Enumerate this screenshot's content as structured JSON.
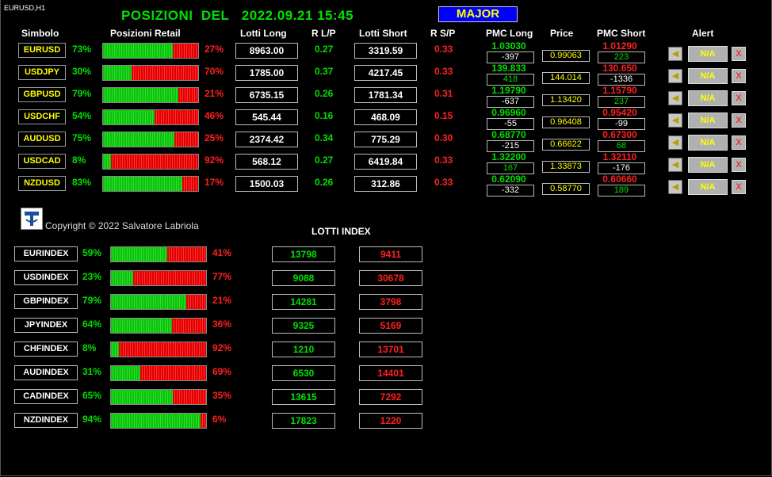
{
  "chart_label": "EURUSD,H1",
  "title": "POSIZIONI  DEL   2022.09.21 15:45",
  "group_button": "MAJOR",
  "headers": {
    "simbolo": "Simbolo",
    "posizioni": "Posizioni Retail",
    "lotti_long": "Lotti Long",
    "r_lp": "R L/P",
    "lotti_short": "Lotti Short",
    "r_sp": "R S/P",
    "pmc_long": "PMC Long",
    "price": "Price",
    "pmc_short": "PMC Short",
    "alert": "Alert"
  },
  "pairs": [
    {
      "symbol": "EURUSD",
      "long_pct": "73%",
      "short_pct": "27%",
      "long_frac": 0.73,
      "lotti_long": "8963.00",
      "r_lp": "0.27",
      "lotti_short": "3319.59",
      "r_sp": "0.33",
      "pmc_long": "1.03030",
      "pmc_long_pips": "-397",
      "price": "0.99063",
      "pmc_short": "1.01290",
      "pmc_short_pips": "223",
      "alert_label": "N/A",
      "alert_close": "X"
    },
    {
      "symbol": "USDJPY",
      "long_pct": "30%",
      "short_pct": "70%",
      "long_frac": 0.3,
      "lotti_long": "1785.00",
      "r_lp": "0.37",
      "lotti_short": "4217.45",
      "r_sp": "0.33",
      "pmc_long": "139.833",
      "pmc_long_pips": "418",
      "price": "144.014",
      "pmc_short": "130.650",
      "pmc_short_pips": "-1336",
      "alert_label": "N/A",
      "alert_close": "X"
    },
    {
      "symbol": "GBPUSD",
      "long_pct": "79%",
      "short_pct": "21%",
      "long_frac": 0.79,
      "lotti_long": "6735.15",
      "r_lp": "0.26",
      "lotti_short": "1781.34",
      "r_sp": "0.31",
      "pmc_long": "1.19790",
      "pmc_long_pips": "-637",
      "price": "1.13420",
      "pmc_short": "1.15790",
      "pmc_short_pips": "237",
      "alert_label": "N/A",
      "alert_close": "X"
    },
    {
      "symbol": "USDCHF",
      "long_pct": "54%",
      "short_pct": "46%",
      "long_frac": 0.54,
      "lotti_long": "545.44",
      "r_lp": "0.16",
      "lotti_short": "468.09",
      "r_sp": "0.15",
      "pmc_long": "0.96960",
      "pmc_long_pips": "-55",
      "price": "0.96408",
      "pmc_short": "0.95420",
      "pmc_short_pips": "-99",
      "alert_label": "N/A",
      "alert_close": "X"
    },
    {
      "symbol": "AUDUSD",
      "long_pct": "75%",
      "short_pct": "25%",
      "long_frac": 0.75,
      "lotti_long": "2374.42",
      "r_lp": "0.34",
      "lotti_short": "775.29",
      "r_sp": "0.30",
      "pmc_long": "0.68770",
      "pmc_long_pips": "-215",
      "price": "0.66622",
      "pmc_short": "0.67300",
      "pmc_short_pips": "68",
      "alert_label": "N/A",
      "alert_close": "X"
    },
    {
      "symbol": "USDCAD",
      "long_pct": "8%",
      "short_pct": "92%",
      "long_frac": 0.08,
      "lotti_long": "568.12",
      "r_lp": "0.27",
      "lotti_short": "6419.84",
      "r_sp": "0.33",
      "pmc_long": "1.32200",
      "pmc_long_pips": "167",
      "price": "1.33873",
      "pmc_short": "1.32110",
      "pmc_short_pips": "-176",
      "alert_label": "N/A",
      "alert_close": "X"
    },
    {
      "symbol": "NZDUSD",
      "long_pct": "83%",
      "short_pct": "17%",
      "long_frac": 0.83,
      "lotti_long": "1500.03",
      "r_lp": "0.26",
      "lotti_short": "312.86",
      "r_sp": "0.33",
      "pmc_long": "0.62090",
      "pmc_long_pips": "-332",
      "price": "0.58770",
      "pmc_short": "0.60660",
      "pmc_short_pips": "189",
      "alert_label": "N/A",
      "alert_close": "X"
    }
  ],
  "copyright": "Copyright © 2022 Salvatore Labriola",
  "index_title": "LOTTI INDEX",
  "indexes": [
    {
      "symbol": "EURINDEX",
      "long_pct": "59%",
      "short_pct": "41%",
      "long_frac": 0.59,
      "long": "13798",
      "short": "9411"
    },
    {
      "symbol": "USDINDEX",
      "long_pct": "23%",
      "short_pct": "77%",
      "long_frac": 0.23,
      "long": "9088",
      "short": "30678"
    },
    {
      "symbol": "GBPINDEX",
      "long_pct": "79%",
      "short_pct": "21%",
      "long_frac": 0.79,
      "long": "14281",
      "short": "3798"
    },
    {
      "symbol": "JPYINDEX",
      "long_pct": "64%",
      "short_pct": "36%",
      "long_frac": 0.64,
      "long": "9325",
      "short": "5169"
    },
    {
      "symbol": "CHFINDEX",
      "long_pct": "8%",
      "short_pct": "92%",
      "long_frac": 0.08,
      "long": "1210",
      "short": "13701"
    },
    {
      "symbol": "AUDINDEX",
      "long_pct": "31%",
      "short_pct": "69%",
      "long_frac": 0.31,
      "long": "6530",
      "short": "14401"
    },
    {
      "symbol": "CADINDEX",
      "long_pct": "65%",
      "short_pct": "35%",
      "long_frac": 0.65,
      "long": "13615",
      "short": "7292"
    },
    {
      "symbol": "NZDINDEX",
      "long_pct": "94%",
      "short_pct": "6%",
      "long_frac": 0.94,
      "long": "17823",
      "short": "1220"
    }
  ],
  "icons": {
    "alert_bell": "bell-icon",
    "logo": "logo-icon"
  },
  "colors": {
    "long": "#00e000",
    "short": "#ff2020",
    "symbol": "#ffff00",
    "major_bg": "#0000ff"
  }
}
